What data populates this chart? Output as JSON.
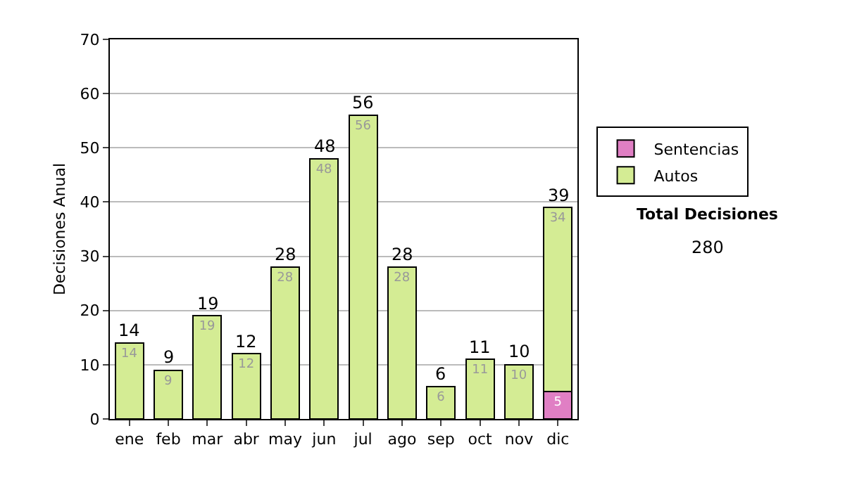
{
  "chart_data": {
    "type": "bar",
    "stacked": true,
    "ylabel": "Decisiones Anual",
    "categories": [
      "ene",
      "feb",
      "mar",
      "abr",
      "may",
      "jun",
      "jul",
      "ago",
      "sep",
      "oct",
      "nov",
      "dic"
    ],
    "series": [
      {
        "name": "Sentencias",
        "color": "#e07fc4",
        "values": [
          null,
          null,
          null,
          null,
          null,
          null,
          null,
          null,
          null,
          null,
          null,
          5
        ]
      },
      {
        "name": "Autos",
        "color": "#d4ec94",
        "values": [
          14,
          9,
          19,
          12,
          28,
          48,
          56,
          28,
          6,
          11,
          10,
          34
        ]
      }
    ],
    "data_labels": true,
    "totals": [
      "14",
      "9",
      "19",
      "12",
      "28",
      "48",
      "56",
      "28",
      "6",
      "11",
      "10",
      "39"
    ],
    "ylim": [
      0,
      70
    ],
    "yticks": [
      0,
      10,
      20,
      30,
      40,
      50,
      60,
      70
    ],
    "grid": "y",
    "legend": "right",
    "annotations": [
      "Total Decisiones",
      "280"
    ]
  }
}
